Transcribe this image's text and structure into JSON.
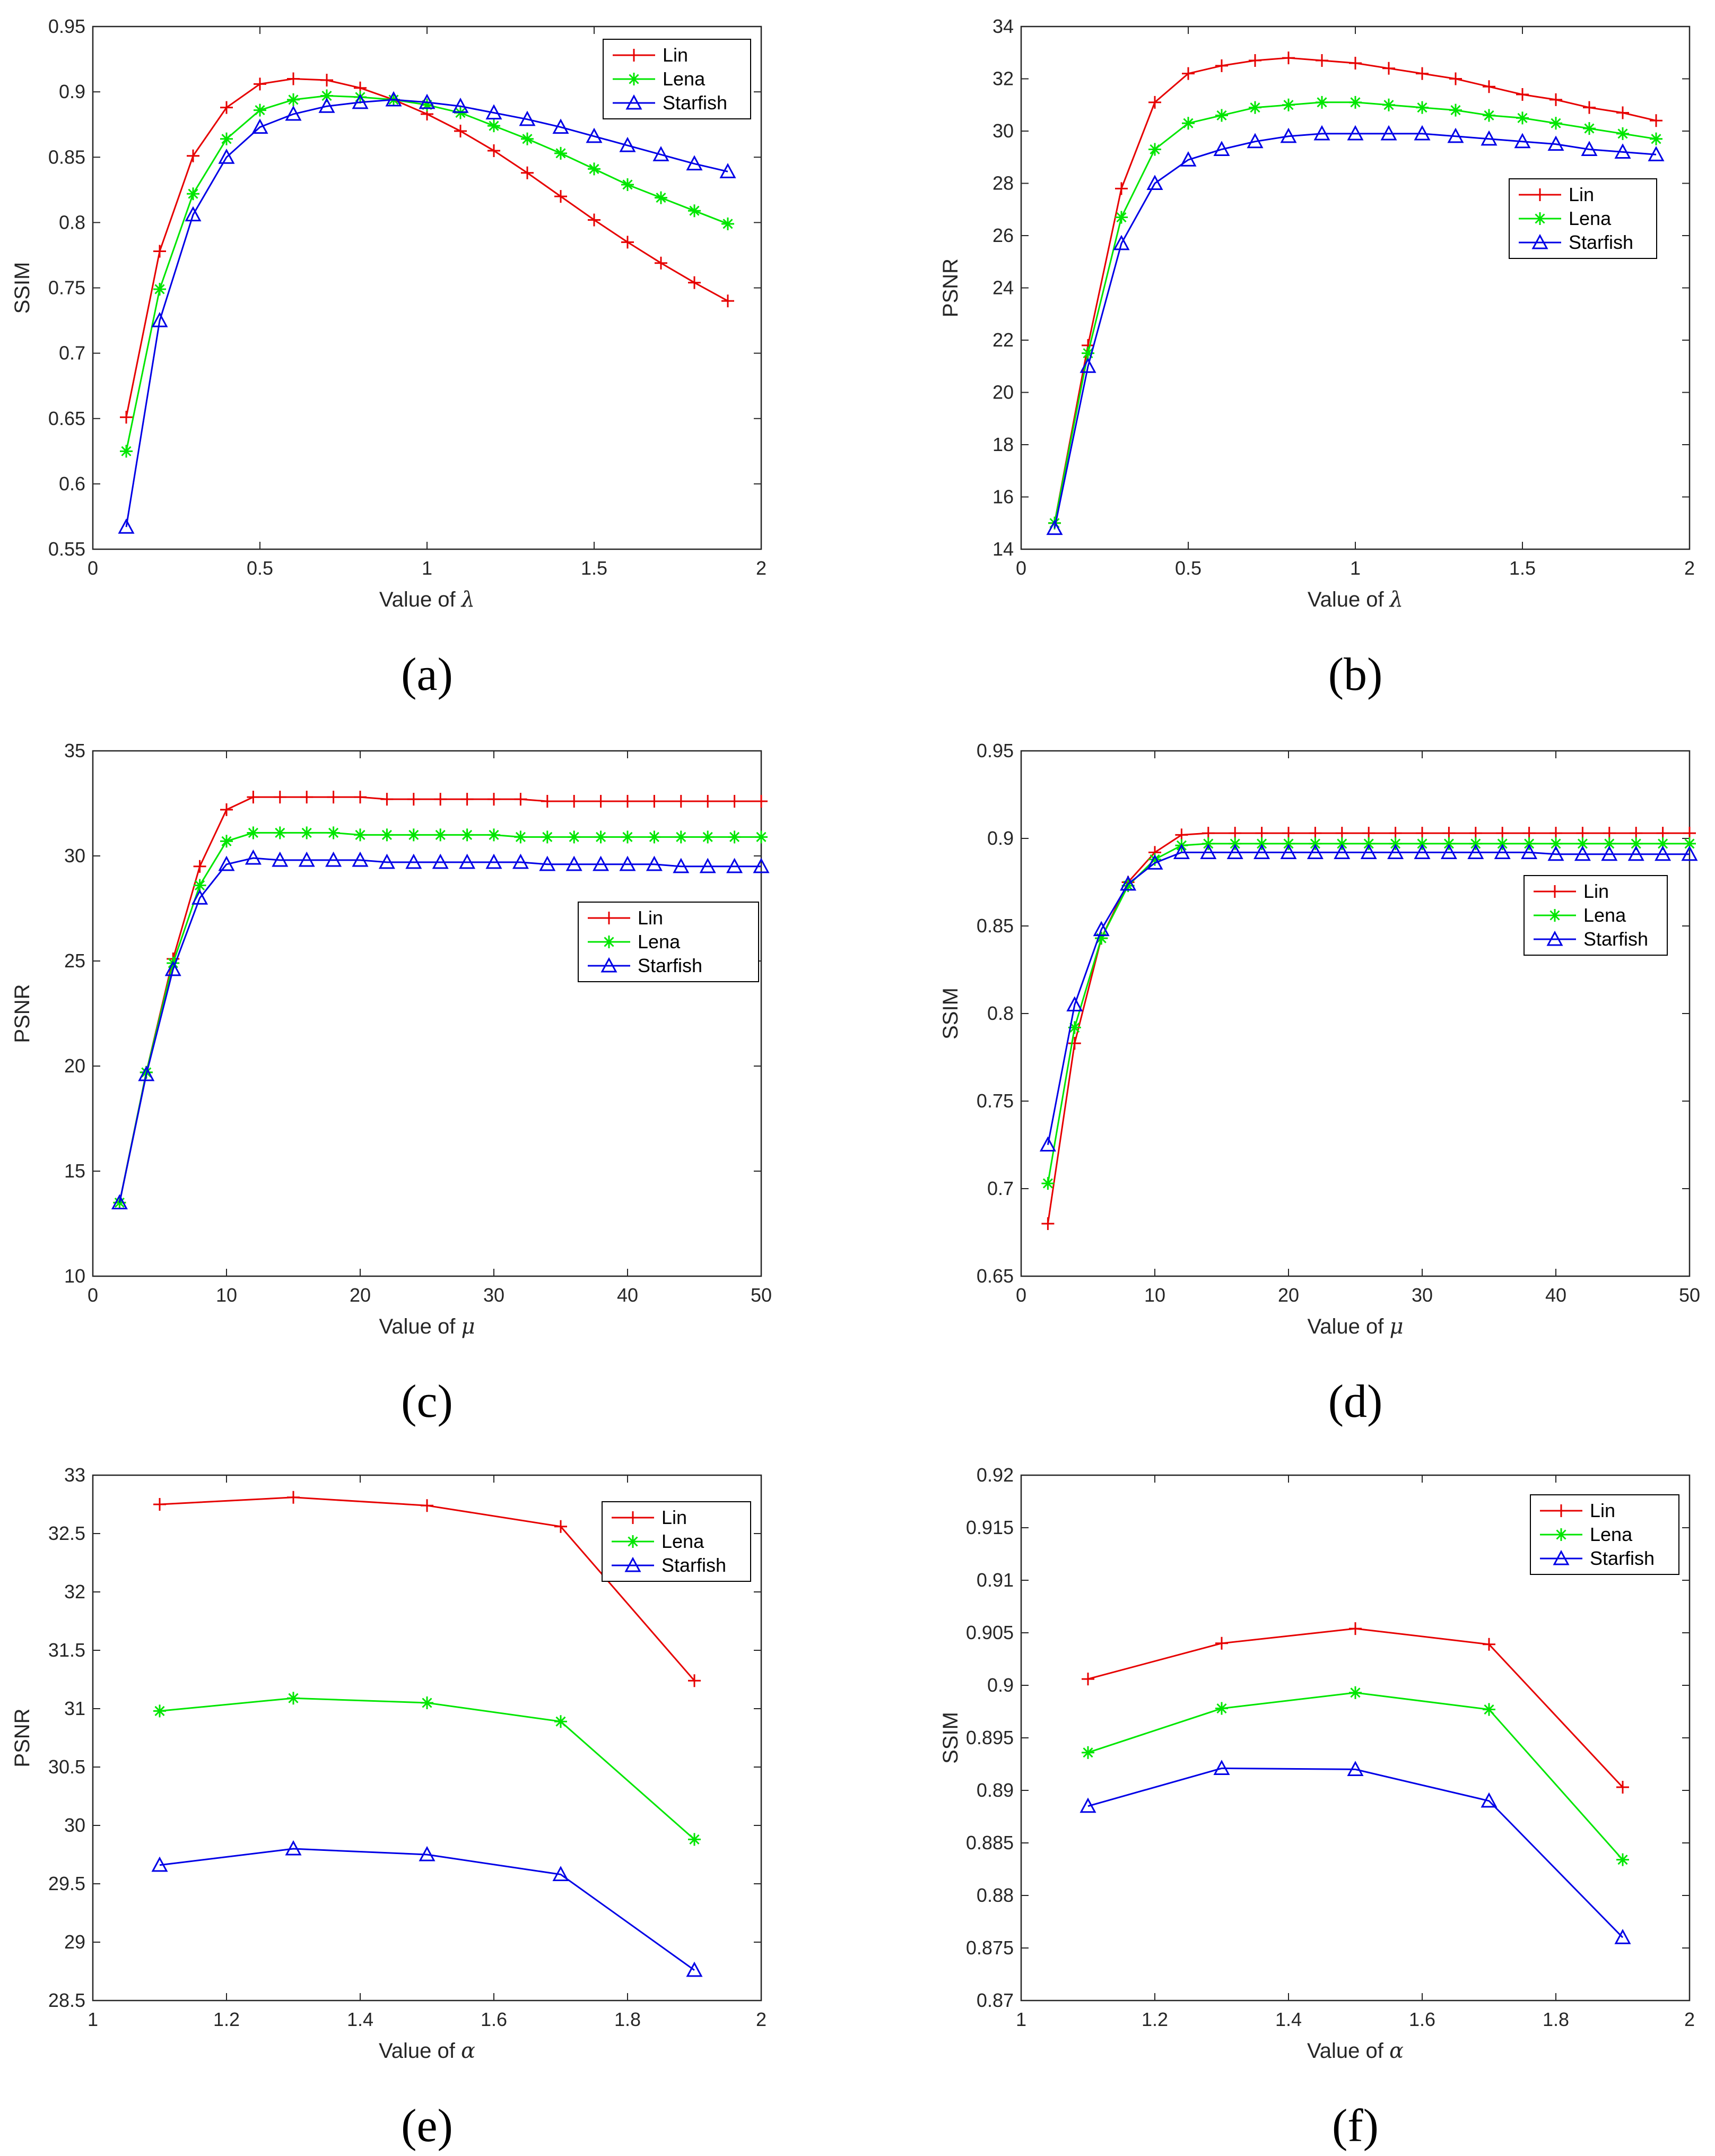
{
  "colors": {
    "Lin": "#e60000",
    "Lena": "#00e600",
    "Starfish": "#0000e6",
    "axis": "#262626",
    "box": "#000000"
  },
  "markers": {
    "Lin": "plus",
    "Lena": "star",
    "Starfish": "triangle"
  },
  "chart_data": [
    {
      "id": "a",
      "caption": "(a)",
      "type": "line",
      "xlabel": "Value of ",
      "xlabel_symbol": "λ",
      "ylabel": "SSIM",
      "xlim": [
        0,
        2
      ],
      "ylim": [
        0.55,
        0.95
      ],
      "xticks": [
        0,
        0.5,
        1,
        1.5,
        2
      ],
      "xtick_labels": [
        "0",
        "0.5",
        "1",
        "1.5",
        "2"
      ],
      "yticks": [
        0.55,
        0.6,
        0.65,
        0.7,
        0.75,
        0.8,
        0.85,
        0.9,
        0.95
      ],
      "ytick_labels": [
        "0.55",
        "0.6",
        "0.65",
        "0.7",
        "0.75",
        "0.8",
        "0.85",
        "0.9",
        "0.95"
      ],
      "legend_position": "top-right",
      "x": [
        0.1,
        0.2,
        0.3,
        0.4,
        0.5,
        0.6,
        0.7,
        0.8,
        0.9,
        1.0,
        1.1,
        1.2,
        1.3,
        1.4,
        1.5,
        1.6,
        1.7,
        1.8,
        1.9
      ],
      "series": [
        {
          "name": "Lin",
          "values": [
            0.651,
            0.778,
            0.851,
            0.888,
            0.906,
            0.91,
            0.909,
            0.903,
            0.894,
            0.883,
            0.87,
            0.855,
            0.838,
            0.82,
            0.802,
            0.785,
            0.769,
            0.754,
            0.74
          ]
        },
        {
          "name": "Lena",
          "values": [
            0.625,
            0.749,
            0.822,
            0.864,
            0.886,
            0.894,
            0.897,
            0.896,
            0.894,
            0.89,
            0.884,
            0.874,
            0.864,
            0.853,
            0.841,
            0.829,
            0.819,
            0.809,
            0.799
          ]
        },
        {
          "name": "Starfish",
          "values": [
            0.567,
            0.725,
            0.806,
            0.85,
            0.873,
            0.883,
            0.889,
            0.892,
            0.894,
            0.892,
            0.889,
            0.884,
            0.879,
            0.873,
            0.866,
            0.859,
            0.852,
            0.845,
            0.839
          ]
        }
      ]
    },
    {
      "id": "b",
      "caption": "(b)",
      "type": "line",
      "xlabel": "Value of ",
      "xlabel_symbol": "λ",
      "ylabel": "PSNR",
      "xlim": [
        0,
        2
      ],
      "ylim": [
        14,
        34
      ],
      "xticks": [
        0,
        0.5,
        1,
        1.5,
        2
      ],
      "xtick_labels": [
        "0",
        "0.5",
        "1",
        "1.5",
        "2"
      ],
      "yticks": [
        14,
        16,
        18,
        20,
        22,
        24,
        26,
        28,
        30,
        32,
        34
      ],
      "ytick_labels": [
        "14",
        "16",
        "18",
        "20",
        "22",
        "24",
        "26",
        "28",
        "30",
        "32",
        "34"
      ],
      "legend_position": "middle-right",
      "x": [
        0.1,
        0.2,
        0.3,
        0.4,
        0.5,
        0.6,
        0.7,
        0.8,
        0.9,
        1.0,
        1.1,
        1.2,
        1.3,
        1.4,
        1.5,
        1.6,
        1.7,
        1.8,
        1.9
      ],
      "series": [
        {
          "name": "Lin",
          "values": [
            15.0,
            21.8,
            27.8,
            31.1,
            32.2,
            32.5,
            32.7,
            32.8,
            32.7,
            32.6,
            32.4,
            32.2,
            32.0,
            31.7,
            31.4,
            31.2,
            30.9,
            30.7,
            30.4
          ]
        },
        {
          "name": "Lena",
          "values": [
            15.0,
            21.5,
            26.7,
            29.3,
            30.3,
            30.6,
            30.9,
            31.0,
            31.1,
            31.1,
            31.0,
            30.9,
            30.8,
            30.6,
            30.5,
            30.3,
            30.1,
            29.9,
            29.7
          ]
        },
        {
          "name": "Starfish",
          "values": [
            14.8,
            21.0,
            25.7,
            28.0,
            28.9,
            29.3,
            29.6,
            29.8,
            29.9,
            29.9,
            29.9,
            29.9,
            29.8,
            29.7,
            29.6,
            29.5,
            29.3,
            29.2,
            29.1
          ]
        }
      ]
    },
    {
      "id": "c",
      "caption": "(c)",
      "type": "line",
      "xlabel": "Value of ",
      "xlabel_symbol": "μ",
      "ylabel": "PSNR",
      "xlim": [
        0,
        50
      ],
      "ylim": [
        10,
        35
      ],
      "xticks": [
        0,
        10,
        20,
        30,
        40,
        50
      ],
      "xtick_labels": [
        "0",
        "10",
        "20",
        "30",
        "40",
        "50"
      ],
      "yticks": [
        10,
        15,
        20,
        25,
        30,
        35
      ],
      "ytick_labels": [
        "10",
        "15",
        "20",
        "25",
        "30",
        "35"
      ],
      "legend_position": "middle-right",
      "x": [
        2,
        4,
        6,
        8,
        10,
        12,
        14,
        16,
        18,
        20,
        22,
        24,
        26,
        28,
        30,
        32,
        34,
        36,
        38,
        40,
        42,
        44,
        46,
        48,
        50
      ],
      "series": [
        {
          "name": "Lin",
          "values": [
            13.5,
            19.7,
            25.1,
            29.5,
            32.2,
            32.8,
            32.8,
            32.8,
            32.8,
            32.8,
            32.7,
            32.7,
            32.7,
            32.7,
            32.7,
            32.7,
            32.6,
            32.6,
            32.6,
            32.6,
            32.6,
            32.6,
            32.6,
            32.6,
            32.6
          ]
        },
        {
          "name": "Lena",
          "values": [
            13.5,
            19.7,
            24.9,
            28.6,
            30.7,
            31.1,
            31.1,
            31.1,
            31.1,
            31.0,
            31.0,
            31.0,
            31.0,
            31.0,
            31.0,
            30.9,
            30.9,
            30.9,
            30.9,
            30.9,
            30.9,
            30.9,
            30.9,
            30.9,
            30.9
          ]
        },
        {
          "name": "Starfish",
          "values": [
            13.5,
            19.6,
            24.6,
            28.0,
            29.6,
            29.9,
            29.8,
            29.8,
            29.8,
            29.8,
            29.7,
            29.7,
            29.7,
            29.7,
            29.7,
            29.7,
            29.6,
            29.6,
            29.6,
            29.6,
            29.6,
            29.5,
            29.5,
            29.5,
            29.5
          ]
        }
      ]
    },
    {
      "id": "d",
      "caption": "(d)",
      "type": "line",
      "xlabel": "Value of ",
      "xlabel_symbol": "μ",
      "ylabel": "SSIM",
      "xlim": [
        0,
        50
      ],
      "ylim": [
        0.65,
        0.95
      ],
      "xticks": [
        0,
        10,
        20,
        30,
        40,
        50
      ],
      "xtick_labels": [
        "0",
        "10",
        "20",
        "30",
        "40",
        "50"
      ],
      "yticks": [
        0.65,
        0.7,
        0.75,
        0.8,
        0.85,
        0.9,
        0.95
      ],
      "ytick_labels": [
        "0.65",
        "0.7",
        "0.75",
        "0.8",
        "0.85",
        "0.9",
        "0.95"
      ],
      "legend_position": "middle-right",
      "x": [
        2,
        4,
        6,
        8,
        10,
        12,
        14,
        16,
        18,
        20,
        22,
        24,
        26,
        28,
        30,
        32,
        34,
        36,
        38,
        40,
        42,
        44,
        46,
        48,
        50
      ],
      "series": [
        {
          "name": "Lin",
          "values": [
            0.68,
            0.783,
            0.843,
            0.875,
            0.892,
            0.902,
            0.903,
            0.903,
            0.903,
            0.903,
            0.903,
            0.903,
            0.903,
            0.903,
            0.903,
            0.903,
            0.903,
            0.903,
            0.903,
            0.903,
            0.903,
            0.903,
            0.903,
            0.903,
            0.903
          ]
        },
        {
          "name": "Lena",
          "values": [
            0.703,
            0.792,
            0.843,
            0.873,
            0.888,
            0.896,
            0.897,
            0.897,
            0.897,
            0.897,
            0.897,
            0.897,
            0.897,
            0.897,
            0.897,
            0.897,
            0.897,
            0.897,
            0.897,
            0.897,
            0.897,
            0.897,
            0.897,
            0.897,
            0.897
          ]
        },
        {
          "name": "Starfish",
          "values": [
            0.725,
            0.805,
            0.848,
            0.874,
            0.886,
            0.892,
            0.892,
            0.892,
            0.892,
            0.892,
            0.892,
            0.892,
            0.892,
            0.892,
            0.892,
            0.892,
            0.892,
            0.892,
            0.892,
            0.891,
            0.891,
            0.891,
            0.891,
            0.891,
            0.891
          ]
        }
      ]
    },
    {
      "id": "e",
      "caption": "(e)",
      "type": "line",
      "xlabel": "Value of ",
      "xlabel_symbol": "α",
      "ylabel": "PSNR",
      "xlim": [
        1,
        2
      ],
      "ylim": [
        28.5,
        33
      ],
      "xticks": [
        1,
        1.2,
        1.4,
        1.6,
        1.8,
        2
      ],
      "xtick_labels": [
        "1",
        "1.2",
        "1.4",
        "1.6",
        "1.8",
        "2"
      ],
      "yticks": [
        28.5,
        29,
        29.5,
        30,
        30.5,
        31,
        31.5,
        32,
        32.5,
        33
      ],
      "ytick_labels": [
        "28.5",
        "29",
        "29.5",
        "30",
        "30.5",
        "31",
        "31.5",
        "32",
        "32.5",
        "33"
      ],
      "legend_position": "top-right",
      "x": [
        1.1,
        1.3,
        1.5,
        1.7,
        1.9
      ],
      "series": [
        {
          "name": "Lin",
          "values": [
            32.75,
            32.81,
            32.74,
            32.56,
            31.24
          ]
        },
        {
          "name": "Lena",
          "values": [
            30.98,
            31.09,
            31.05,
            30.89,
            29.88
          ]
        },
        {
          "name": "Starfish",
          "values": [
            29.66,
            29.8,
            29.75,
            29.58,
            28.76
          ]
        }
      ]
    },
    {
      "id": "f",
      "caption": "(f)",
      "type": "line",
      "xlabel": "Value of ",
      "xlabel_symbol": "α",
      "ylabel": "SSIM",
      "xlim": [
        1,
        2
      ],
      "ylim": [
        0.87,
        0.92
      ],
      "xticks": [
        1,
        1.2,
        1.4,
        1.6,
        1.8,
        2
      ],
      "xtick_labels": [
        "1",
        "1.2",
        "1.4",
        "1.6",
        "1.8",
        "2"
      ],
      "yticks": [
        0.87,
        0.875,
        0.88,
        0.885,
        0.89,
        0.895,
        0.9,
        0.905,
        0.91,
        0.915,
        0.92
      ],
      "ytick_labels": [
        "0.87",
        "0.875",
        "0.88",
        "0.885",
        "0.89",
        "0.895",
        "0.9",
        "0.905",
        "0.91",
        "0.915",
        "0.92"
      ],
      "legend_position": "top-right",
      "x": [
        1.1,
        1.3,
        1.5,
        1.7,
        1.9
      ],
      "series": [
        {
          "name": "Lin",
          "values": [
            0.9006,
            0.904,
            0.9054,
            0.9039,
            0.8903
          ]
        },
        {
          "name": "Lena",
          "values": [
            0.8936,
            0.8978,
            0.8993,
            0.8977,
            0.8834
          ]
        },
        {
          "name": "Starfish",
          "values": [
            0.8885,
            0.8921,
            0.892,
            0.889,
            0.876
          ]
        }
      ]
    }
  ]
}
